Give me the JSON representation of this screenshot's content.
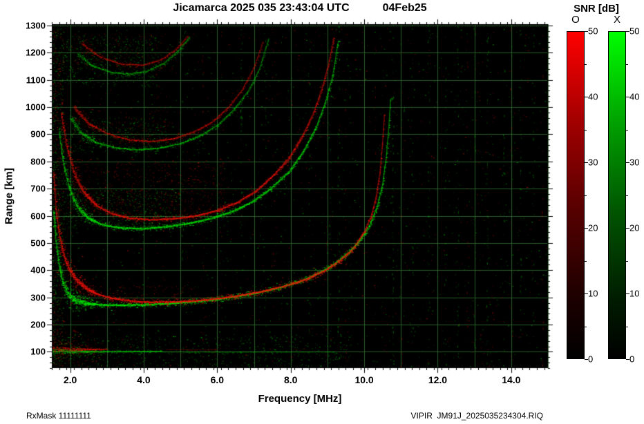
{
  "title": {
    "main": "Jicamarca 2025 035 23:43:04 UTC",
    "date": "04Feb25"
  },
  "footer": {
    "left": "RxMask 11111111",
    "right": "VIPIR  JM91J_2025035234304.RIQ"
  },
  "colorbar": {
    "title": "SNR [dB]",
    "o_label": "O",
    "x_label": "X",
    "ticks": [
      0,
      10,
      20,
      30,
      40,
      50
    ],
    "o_color": "#ff0000",
    "x_color": "#00dd00",
    "min": 0,
    "max": 50,
    "units": "dB"
  },
  "chart_data": {
    "type": "heatmap",
    "kind": "ionogram",
    "title": "Jicamarca 2025 035 23:43:04 UTC 04Feb25",
    "xlabel": "Frequency [MHz]",
    "ylabel": "Range [km]",
    "x_range": [
      1.5,
      15.0
    ],
    "y_range": [
      40,
      1305
    ],
    "x_major_ticks": [
      2,
      4,
      6,
      8,
      10,
      12,
      14
    ],
    "x_tick_labels": [
      "2.0",
      "4.0",
      "6.0",
      "8.0",
      "10.0",
      "12.0",
      "14.0"
    ],
    "x_minor_step": 0.2,
    "y_major_ticks": [
      100,
      200,
      300,
      400,
      500,
      600,
      700,
      800,
      900,
      1000,
      1100,
      1200,
      1300
    ],
    "y_minor_step": 20,
    "grid_on": true,
    "grid_color": "#2f6b2f",
    "background": "#000000",
    "snr_range": [
      0,
      50
    ],
    "legend": {
      "O_mode_color": "red",
      "X_mode_color": "green",
      "position": "right"
    },
    "critical_frequency_MHz": {
      "foF2_O": 10.55,
      "fxF2_X": 10.72
    },
    "traces": [
      {
        "name": "F2-layer-1st-hop",
        "gain": 1.0,
        "spread": 2.2,
        "x_points": [
          [
            1.55,
            620
          ],
          [
            1.62,
            500
          ],
          [
            1.7,
            420
          ],
          [
            1.8,
            355
          ],
          [
            1.95,
            312
          ],
          [
            2.15,
            288
          ],
          [
            2.45,
            278
          ],
          [
            2.9,
            273
          ],
          [
            3.5,
            272
          ],
          [
            4.1,
            274
          ],
          [
            4.7,
            278
          ],
          [
            5.3,
            284
          ],
          [
            5.9,
            292
          ],
          [
            6.5,
            304
          ],
          [
            7.1,
            318
          ],
          [
            7.7,
            337
          ],
          [
            8.3,
            362
          ],
          [
            8.8,
            393
          ],
          [
            9.2,
            425
          ],
          [
            9.6,
            468
          ],
          [
            9.9,
            514
          ],
          [
            10.15,
            566
          ],
          [
            10.35,
            632
          ],
          [
            10.5,
            715
          ],
          [
            10.6,
            815
          ],
          [
            10.67,
            925
          ],
          [
            10.72,
            1030
          ]
        ],
        "o_points": [
          [
            1.55,
            760
          ],
          [
            1.62,
            620
          ],
          [
            1.72,
            520
          ],
          [
            1.85,
            445
          ],
          [
            2.0,
            398
          ],
          [
            2.2,
            360
          ],
          [
            2.45,
            332
          ],
          [
            2.75,
            312
          ],
          [
            3.15,
            297
          ],
          [
            3.65,
            287
          ],
          [
            4.2,
            283
          ],
          [
            4.8,
            284
          ],
          [
            5.4,
            288
          ],
          [
            6.0,
            296
          ],
          [
            6.6,
            307
          ],
          [
            7.2,
            322
          ],
          [
            7.8,
            341
          ],
          [
            8.4,
            366
          ],
          [
            8.9,
            397
          ],
          [
            9.3,
            432
          ],
          [
            9.7,
            480
          ],
          [
            10.0,
            540
          ],
          [
            10.2,
            602
          ],
          [
            10.33,
            672
          ],
          [
            10.43,
            760
          ],
          [
            10.5,
            865
          ],
          [
            10.55,
            970
          ]
        ]
      },
      {
        "name": "F2-layer-2nd-hop",
        "gain": 0.85,
        "spread": 2.2,
        "x_points": [
          [
            1.7,
            910
          ],
          [
            1.82,
            790
          ],
          [
            1.98,
            700
          ],
          [
            2.2,
            632
          ],
          [
            2.5,
            590
          ],
          [
            2.9,
            566
          ],
          [
            3.4,
            556
          ],
          [
            4.0,
            554
          ],
          [
            4.6,
            560
          ],
          [
            5.2,
            572
          ],
          [
            5.8,
            590
          ],
          [
            6.4,
            616
          ],
          [
            6.95,
            652
          ],
          [
            7.45,
            700
          ],
          [
            7.95,
            762
          ],
          [
            8.35,
            838
          ],
          [
            8.7,
            928
          ],
          [
            8.95,
            1020
          ],
          [
            9.15,
            1120
          ],
          [
            9.3,
            1245
          ]
        ],
        "o_points": [
          [
            1.75,
            980
          ],
          [
            1.9,
            860
          ],
          [
            2.1,
            760
          ],
          [
            2.35,
            690
          ],
          [
            2.7,
            640
          ],
          [
            3.1,
            610
          ],
          [
            3.6,
            592
          ],
          [
            4.2,
            586
          ],
          [
            4.8,
            590
          ],
          [
            5.4,
            600
          ],
          [
            6.0,
            620
          ],
          [
            6.55,
            650
          ],
          [
            7.05,
            692
          ],
          [
            7.5,
            745
          ],
          [
            7.95,
            812
          ],
          [
            8.3,
            888
          ],
          [
            8.6,
            972
          ],
          [
            8.85,
            1065
          ],
          [
            9.05,
            1170
          ],
          [
            9.18,
            1255
          ]
        ]
      },
      {
        "name": "F2-layer-3rd-hop",
        "gain": 0.6,
        "spread": 2.0,
        "x_points": [
          [
            2.0,
            960
          ],
          [
            2.3,
            905
          ],
          [
            2.7,
            870
          ],
          [
            3.2,
            851
          ],
          [
            3.8,
            843
          ],
          [
            4.4,
            849
          ],
          [
            5.0,
            866
          ],
          [
            5.5,
            893
          ],
          [
            6.0,
            933
          ],
          [
            6.45,
            990
          ],
          [
            6.85,
            1060
          ],
          [
            7.15,
            1140
          ],
          [
            7.4,
            1250
          ]
        ],
        "o_points": [
          [
            2.1,
            1000
          ],
          [
            2.5,
            940
          ],
          [
            3.0,
            903
          ],
          [
            3.6,
            880
          ],
          [
            4.2,
            874
          ],
          [
            4.8,
            884
          ],
          [
            5.35,
            908
          ],
          [
            5.85,
            944
          ],
          [
            6.3,
            998
          ],
          [
            6.7,
            1068
          ],
          [
            7.0,
            1145
          ],
          [
            7.25,
            1240
          ]
        ]
      },
      {
        "name": "F2-layer-4th-hop",
        "gain": 0.5,
        "spread": 2.0,
        "x_points": [
          [
            2.2,
            1195
          ],
          [
            2.6,
            1152
          ],
          [
            3.1,
            1129
          ],
          [
            3.6,
            1122
          ],
          [
            4.1,
            1133
          ],
          [
            4.55,
            1162
          ],
          [
            4.95,
            1208
          ],
          [
            5.25,
            1258
          ]
        ],
        "o_points": [
          [
            2.3,
            1235
          ],
          [
            2.8,
            1185
          ],
          [
            3.4,
            1158
          ],
          [
            4.0,
            1155
          ],
          [
            4.5,
            1176
          ],
          [
            4.9,
            1215
          ],
          [
            5.2,
            1262
          ]
        ]
      },
      {
        "name": "E-layer",
        "gain": 0.55,
        "spread": 1.2,
        "x_points": [
          [
            1.5,
            102
          ],
          [
            2.5,
            101
          ],
          [
            3.5,
            101
          ],
          [
            4.5,
            102
          ]
        ],
        "o_points": [
          [
            1.5,
            110
          ],
          [
            2.2,
            109
          ],
          [
            3.0,
            110
          ]
        ]
      },
      {
        "name": "E-layer-sparse",
        "gain": 0.2,
        "spread": 1.0,
        "x_points": [
          [
            4.5,
            100
          ],
          [
            6.5,
            99
          ],
          [
            9.2,
            100
          ]
        ],
        "o_points": [
          [
            4.6,
            108
          ],
          [
            6.0,
            107
          ]
        ]
      }
    ],
    "rfi_columns": [
      {
        "f": 5.05,
        "color": "green",
        "density": 0.05
      },
      {
        "f": 6.65,
        "color": "green",
        "density": 0.12
      },
      {
        "f": 7.3,
        "color": "green",
        "density": 0.04
      },
      {
        "f": 8.5,
        "color": "green",
        "density": 0.05
      },
      {
        "f": 9.05,
        "color": "green",
        "density": 0.06
      },
      {
        "f": 9.3,
        "color": "green",
        "density": 0.1
      },
      {
        "f": 9.6,
        "color": "green",
        "density": 0.05
      },
      {
        "f": 10.78,
        "color": "green",
        "density": 0.12
      },
      {
        "f": 11.3,
        "color": "green",
        "density": 0.05
      },
      {
        "f": 11.75,
        "color": "green",
        "density": 0.1
      },
      {
        "f": 12.2,
        "color": "green",
        "density": 0.05
      },
      {
        "f": 12.55,
        "color": "green",
        "density": 0.08
      },
      {
        "f": 13.0,
        "color": "green",
        "density": 0.05
      },
      {
        "f": 13.35,
        "color": "green",
        "density": 0.08
      },
      {
        "f": 13.8,
        "color": "green",
        "density": 0.05
      },
      {
        "f": 14.25,
        "color": "green",
        "density": 0.08
      },
      {
        "f": 14.6,
        "color": "green",
        "density": 0.05
      },
      {
        "f": 5.6,
        "color": "red",
        "density": 0.05
      },
      {
        "f": 6.1,
        "color": "red",
        "density": 0.04
      },
      {
        "f": 7.5,
        "color": "red",
        "density": 0.03
      },
      {
        "f": 9.5,
        "color": "red",
        "density": 0.04
      },
      {
        "f": 10.3,
        "color": "red",
        "density": 0.04
      },
      {
        "f": 11.0,
        "color": "red",
        "density": 0.03
      },
      {
        "f": 12.8,
        "color": "red",
        "density": 0.04
      },
      {
        "f": 13.5,
        "color": "red",
        "density": 0.03
      },
      {
        "f": 14.0,
        "color": "red",
        "density": 0.03
      },
      {
        "f": 14.85,
        "color": "red",
        "density": 0.05
      }
    ],
    "noise_patches": [
      {
        "f": [
          1.5,
          1.82
        ],
        "r": [
          50,
          1290
        ],
        "color": "mix",
        "density": 0.1
      },
      {
        "f": [
          1.8,
          5.0
        ],
        "r": [
          550,
          700
        ],
        "color": "green",
        "density": 0.05
      },
      {
        "f": [
          1.9,
          6.2
        ],
        "r": [
          600,
          810
        ],
        "color": "red",
        "density": 0.035
      },
      {
        "f": [
          1.9,
          4.6
        ],
        "r": [
          835,
          965
        ],
        "color": "green",
        "density": 0.04
      },
      {
        "f": [
          2.0,
          5.0
        ],
        "r": [
          865,
          1005
        ],
        "color": "red",
        "density": 0.02
      },
      {
        "f": [
          1.8,
          4.4
        ],
        "r": [
          1075,
          1265
        ],
        "color": "green",
        "density": 0.04
      },
      {
        "f": [
          2.0,
          4.6
        ],
        "r": [
          1135,
          1270
        ],
        "color": "red",
        "density": 0.018
      },
      {
        "f": [
          1.5,
          9.6
        ],
        "r": [
          45,
          165
        ],
        "color": "green",
        "density": 0.025
      },
      {
        "f": [
          1.5,
          2.7
        ],
        "r": [
          50,
          185
        ],
        "color": "red",
        "density": 0.04
      },
      {
        "f": [
          2.1,
          5.4
        ],
        "r": [
          275,
          345
        ],
        "color": "red",
        "density": 0.03
      },
      {
        "f": [
          1.5,
          15.0
        ],
        "r": [
          45,
          1295
        ],
        "color": "green",
        "density": 0.0035
      },
      {
        "f": [
          1.5,
          15.0
        ],
        "r": [
          45,
          1295
        ],
        "color": "red",
        "density": 0.0025
      }
    ]
  }
}
